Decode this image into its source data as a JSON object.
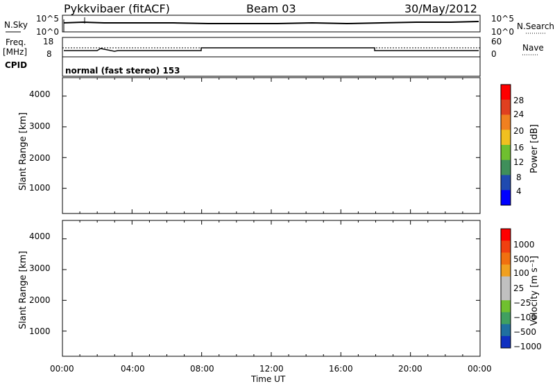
{
  "header": {
    "title": "Pykkvibaer (fitACF)",
    "beam": "Beam 03",
    "date": "30/May/2012"
  },
  "noise_panel": {
    "left_label": "N.Sky",
    "right_label": "N.Search",
    "ticks": [
      "10^5",
      "10^0"
    ],
    "right_ticks": [
      "10^5",
      "10^0"
    ]
  },
  "freq_panel": {
    "left_label_1": "Freq.",
    "left_label_2": "[MHz]",
    "left_ticks": [
      "18",
      "8"
    ],
    "right_ticks": [
      "60",
      "0"
    ],
    "right_label": "Nave"
  },
  "cpid": {
    "label": "CPID",
    "value": "normal (fast stereo) 153"
  },
  "power_panel": {
    "ylabel": "Slant Range [km]",
    "yticks": [
      "4000",
      "3000",
      "2000",
      "1000"
    ],
    "colorbar_label": "Power [dB]",
    "colorbar_ticks": [
      "28",
      "24",
      "20",
      "16",
      "12",
      "8",
      "4"
    ],
    "colors": [
      "#0000ff",
      "#1f4ab0",
      "#3f8f5a",
      "#6fbf2f",
      "#f0c020",
      "#f08020",
      "#e04020",
      "#ff0000"
    ]
  },
  "velocity_panel": {
    "ylabel": "Slant Range [km]",
    "yticks": [
      "4000",
      "3000",
      "2000",
      "1000"
    ],
    "colorbar_label": "Velocity [m s⁻¹]",
    "colorbar_ticks": [
      "1000",
      "500",
      "100",
      "25",
      "−25",
      "−100",
      "−500",
      "−1000"
    ],
    "colors": [
      "#1030c0",
      "#2070a0",
      "#40a060",
      "#70c030",
      "#c0c0c0",
      "#c0c0c0",
      "#f0a020",
      "#f07010",
      "#f04010",
      "#ff0000"
    ]
  },
  "x_axis": {
    "ticks": [
      "00:00",
      "04:00",
      "08:00",
      "12:00",
      "16:00",
      "20:00",
      "00:00"
    ],
    "label": "Time UT"
  },
  "chart_data": [
    {
      "type": "line",
      "title": "N.Sky",
      "x_range": [
        "00:00",
        "24:00"
      ],
      "note_values": "noise level approximately constant near 10^4"
    },
    {
      "type": "line",
      "title": "Freq.",
      "series": [
        {
          "name": "Freq.",
          "x": [
            "00:00",
            "08:00",
            "08:00",
            "18:00",
            "18:00",
            "24:00"
          ],
          "values": [
            10,
            10,
            12,
            12,
            10,
            10
          ]
        }
      ],
      "ylim": [
        8,
        18
      ]
    },
    {
      "type": "heatmap",
      "title": "Power [dB]",
      "xlabel": "Time UT",
      "ylabel": "Slant Range [km]",
      "xlim": [
        0,
        24
      ],
      "ylim": [
        180,
        4600
      ],
      "colorbar_range": [
        0,
        32
      ]
    },
    {
      "type": "heatmap",
      "title": "Velocity [m s⁻¹]",
      "xlabel": "Time UT",
      "ylabel": "Slant Range [km]",
      "xlim": [
        0,
        24
      ],
      "ylim": [
        180,
        4600
      ],
      "colorbar_range": [
        -1000,
        1000
      ]
    }
  ]
}
